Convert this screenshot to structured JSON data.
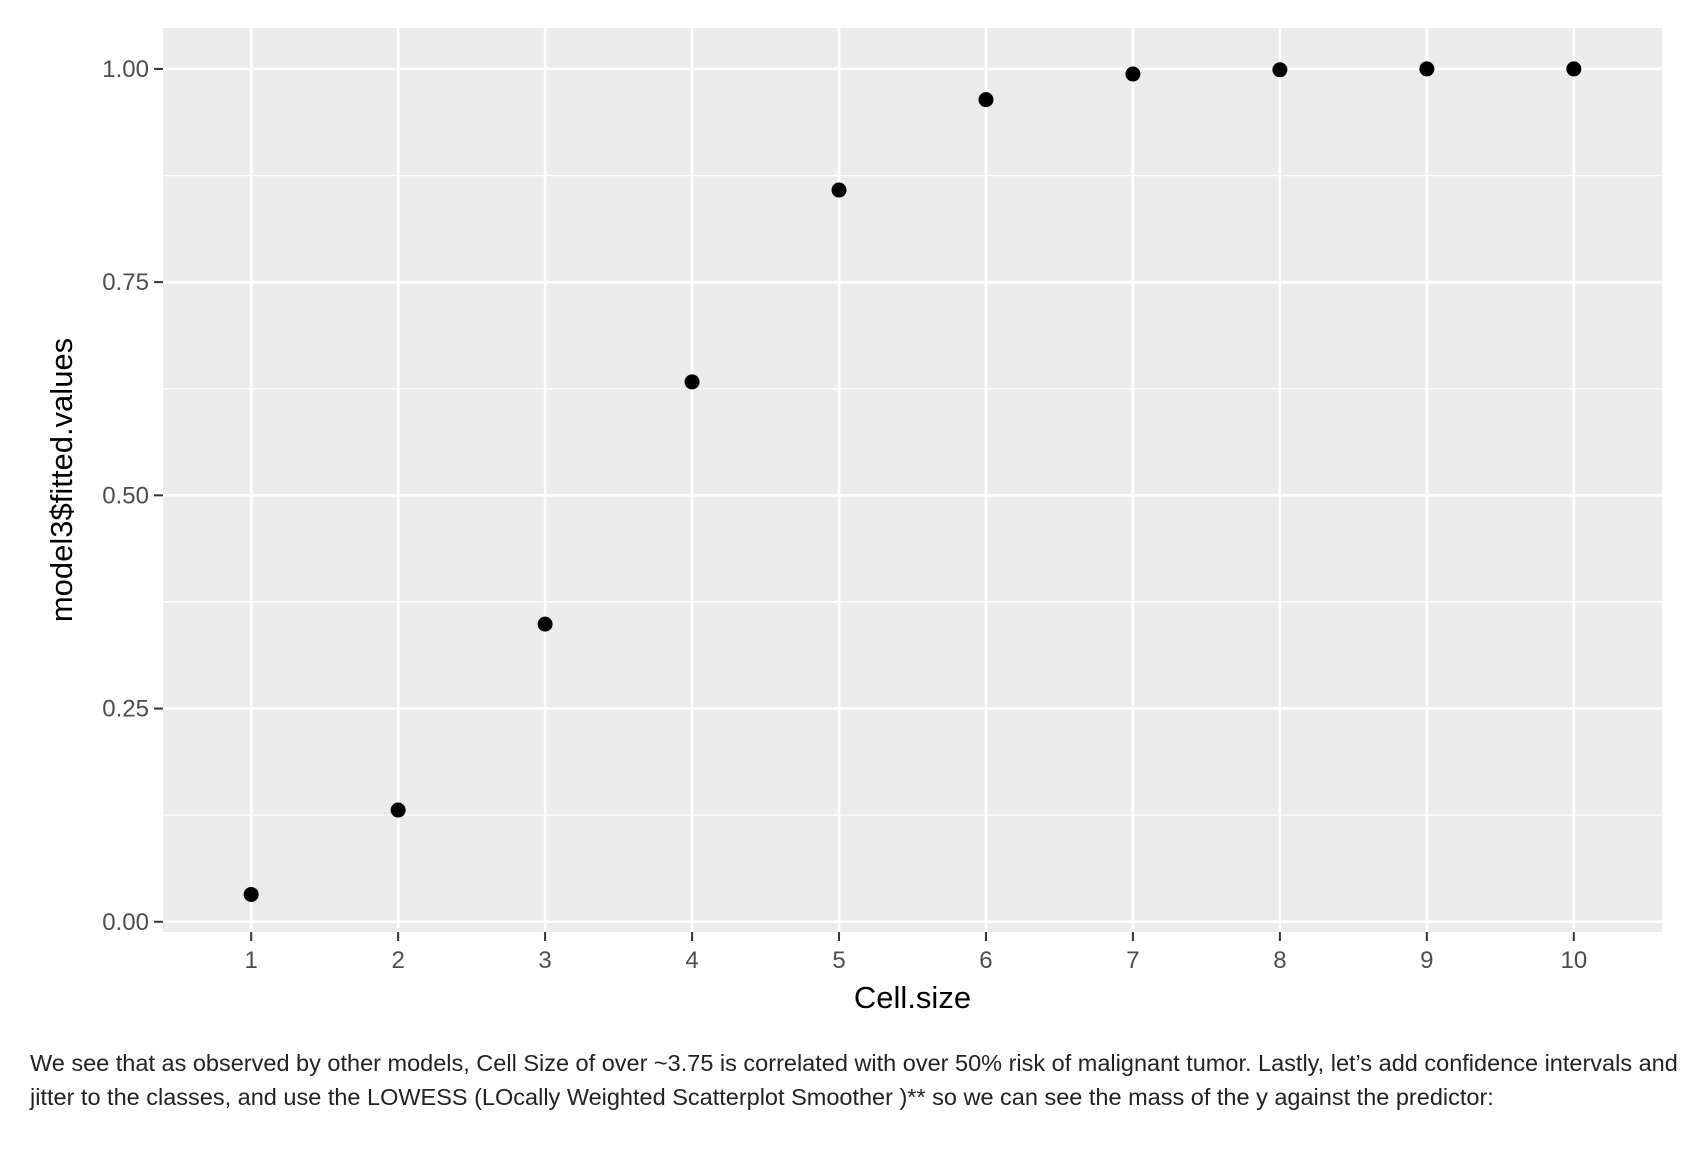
{
  "chart_data": {
    "type": "scatter",
    "x": [
      1,
      2,
      3,
      4,
      5,
      6,
      7,
      8,
      9,
      10
    ],
    "y": [
      0.032,
      0.131,
      0.349,
      0.633,
      0.858,
      0.964,
      0.994,
      0.999,
      1.0,
      1.0
    ],
    "title": "",
    "xlabel": "Cell.size",
    "ylabel": "model3$fitted.values",
    "xlim": [
      0.4,
      10.6
    ],
    "ylim": [
      -0.012,
      1.048
    ],
    "x_ticks": [
      1,
      2,
      3,
      4,
      5,
      6,
      7,
      8,
      9,
      10
    ],
    "x_tick_labels": [
      "1",
      "2",
      "3",
      "4",
      "5",
      "6",
      "7",
      "8",
      "9",
      "10"
    ],
    "y_ticks": [
      0.0,
      0.25,
      0.5,
      0.75,
      1.0
    ],
    "y_tick_labels": [
      "0.00",
      "0.25",
      "0.50",
      "0.75",
      "1.00"
    ],
    "y_minor_ticks": [
      0.125,
      0.375,
      0.625,
      0.875
    ],
    "grid": true,
    "panel_color": "#ebebeb",
    "grid_color": "#ffffff",
    "point_color": "#000000",
    "tick_color": "#333333"
  },
  "caption": "We see that as observed by other models, Cell Size of over ~3.75 is correlated with over 50% risk of malignant tumor. Lastly, let’s add confidence intervals and jitter to the classes, and use the LOWESS (LOcally Weighted Scatterplot Smoother )** so we can see the mass of the y against the predictor:"
}
